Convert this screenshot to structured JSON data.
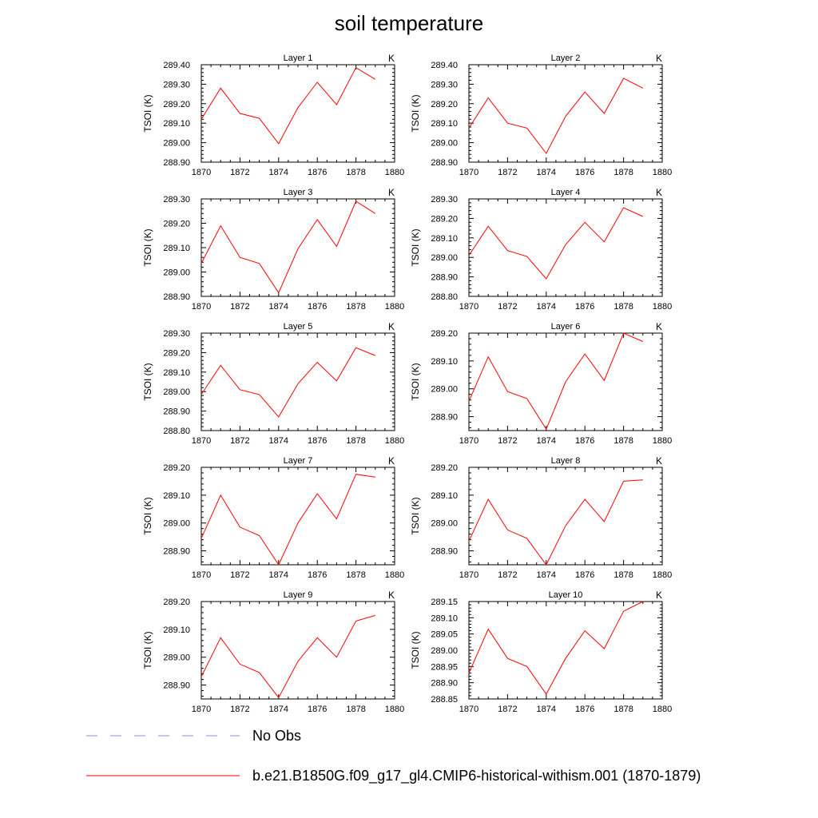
{
  "title": "soil temperature",
  "legend": [
    {
      "label": "No Obs",
      "color": "#8888ee",
      "style": "dashed"
    },
    {
      "label": "b.e21.B1850G.f09_g17_gl4.CMIP6-historical-withism.001 (1870-1879)",
      "color": "#ff0000",
      "style": "solid"
    }
  ],
  "chart_data": [
    {
      "type": "line",
      "title": "Layer 1",
      "units": "K",
      "ylabel": "TSOI  (K)",
      "xlim": [
        1870,
        1880
      ],
      "ylim": [
        288.9,
        289.4
      ],
      "xticks": [
        "1870",
        "1872",
        "1874",
        "1876",
        "1878",
        "1880"
      ],
      "yticks": [
        "288.90",
        "289.00",
        "289.10",
        "289.20",
        "289.30",
        "289.40"
      ],
      "x": [
        1870,
        1871,
        1872,
        1873,
        1874,
        1875,
        1876,
        1877,
        1878,
        1879
      ],
      "series": [
        {
          "color": "#ff0000",
          "values": [
            289.12,
            289.28,
            289.15,
            289.125,
            288.995,
            289.18,
            289.31,
            289.195,
            289.385,
            289.325
          ]
        }
      ]
    },
    {
      "type": "line",
      "title": "Layer 2",
      "units": "K",
      "ylabel": "TSOI  (K)",
      "xlim": [
        1870,
        1880
      ],
      "ylim": [
        288.9,
        289.4
      ],
      "xticks": [
        "1870",
        "1872",
        "1874",
        "1876",
        "1878",
        "1880"
      ],
      "yticks": [
        "288.90",
        "289.00",
        "289.10",
        "289.20",
        "289.30",
        "289.40"
      ],
      "x": [
        1870,
        1871,
        1872,
        1873,
        1874,
        1875,
        1876,
        1877,
        1878,
        1879
      ],
      "series": [
        {
          "color": "#ff0000",
          "values": [
            289.075,
            289.23,
            289.1,
            289.075,
            288.945,
            289.135,
            289.26,
            289.15,
            289.33,
            289.28
          ]
        }
      ]
    },
    {
      "type": "line",
      "title": "Layer 3",
      "units": "K",
      "ylabel": "TSOI  (K)",
      "xlim": [
        1870,
        1880
      ],
      "ylim": [
        288.9,
        289.3
      ],
      "xticks": [
        "1870",
        "1872",
        "1874",
        "1876",
        "1878",
        "1880"
      ],
      "yticks": [
        "288.90",
        "289.00",
        "289.10",
        "289.20",
        "289.30"
      ],
      "x": [
        1870,
        1871,
        1872,
        1873,
        1874,
        1875,
        1876,
        1877,
        1878,
        1879
      ],
      "series": [
        {
          "color": "#ff0000",
          "values": [
            289.035,
            289.19,
            289.06,
            289.035,
            288.915,
            289.095,
            289.215,
            289.105,
            289.29,
            289.24
          ]
        }
      ]
    },
    {
      "type": "line",
      "title": "Layer 4",
      "units": "K",
      "ylabel": "TSOI  (K)",
      "xlim": [
        1870,
        1880
      ],
      "ylim": [
        288.8,
        289.3
      ],
      "xticks": [
        "1870",
        "1872",
        "1874",
        "1876",
        "1878",
        "1880"
      ],
      "yticks": [
        "288.80",
        "288.90",
        "289.00",
        "289.10",
        "289.20",
        "289.30"
      ],
      "x": [
        1870,
        1871,
        1872,
        1873,
        1874,
        1875,
        1876,
        1877,
        1878,
        1879
      ],
      "series": [
        {
          "color": "#ff0000",
          "values": [
            289.01,
            289.16,
            289.035,
            289.005,
            288.89,
            289.065,
            289.18,
            289.08,
            289.255,
            289.21
          ]
        }
      ]
    },
    {
      "type": "line",
      "title": "Layer 5",
      "units": "K",
      "ylabel": "TSOI  (K)",
      "xlim": [
        1870,
        1880
      ],
      "ylim": [
        288.8,
        289.3
      ],
      "xticks": [
        "1870",
        "1872",
        "1874",
        "1876",
        "1878",
        "1880"
      ],
      "yticks": [
        "288.80",
        "288.90",
        "289.00",
        "289.10",
        "289.20",
        "289.30"
      ],
      "x": [
        1870,
        1871,
        1872,
        1873,
        1874,
        1875,
        1876,
        1877,
        1878,
        1879
      ],
      "series": [
        {
          "color": "#ff0000",
          "values": [
            288.985,
            289.135,
            289.01,
            288.985,
            288.87,
            289.04,
            289.15,
            289.055,
            289.225,
            289.185
          ]
        }
      ]
    },
    {
      "type": "line",
      "title": "Layer 6",
      "units": "K",
      "ylabel": "TSOI  (K)",
      "xlim": [
        1870,
        1880
      ],
      "ylim": [
        288.85,
        289.2
      ],
      "xticks": [
        "1870",
        "1872",
        "1874",
        "1876",
        "1878",
        "1880"
      ],
      "yticks": [
        "288.90",
        "289.00",
        "289.10",
        "289.20"
      ],
      "x": [
        1870,
        1871,
        1872,
        1873,
        1874,
        1875,
        1876,
        1877,
        1878,
        1879
      ],
      "series": [
        {
          "color": "#ff0000",
          "values": [
            288.955,
            289.115,
            288.99,
            288.965,
            288.855,
            289.025,
            289.125,
            289.03,
            289.2,
            289.17
          ]
        }
      ]
    },
    {
      "type": "line",
      "title": "Layer 7",
      "units": "K",
      "ylabel": "TSOI  (K)",
      "xlim": [
        1870,
        1880
      ],
      "ylim": [
        288.85,
        289.2
      ],
      "xticks": [
        "1870",
        "1872",
        "1874",
        "1876",
        "1878",
        "1880"
      ],
      "yticks": [
        "288.90",
        "289.00",
        "289.10",
        "289.20"
      ],
      "x": [
        1870,
        1871,
        1872,
        1873,
        1874,
        1875,
        1876,
        1877,
        1878,
        1879
      ],
      "series": [
        {
          "color": "#ff0000",
          "values": [
            288.945,
            289.1,
            288.985,
            288.955,
            288.85,
            289.0,
            289.105,
            289.015,
            289.175,
            289.165
          ]
        }
      ]
    },
    {
      "type": "line",
      "title": "Layer 8",
      "units": "K",
      "ylabel": "TSOI  (K)",
      "xlim": [
        1870,
        1880
      ],
      "ylim": [
        288.85,
        289.2
      ],
      "xticks": [
        "1870",
        "1872",
        "1874",
        "1876",
        "1878",
        "1880"
      ],
      "yticks": [
        "288.90",
        "289.00",
        "289.10",
        "289.20"
      ],
      "x": [
        1870,
        1871,
        1872,
        1873,
        1874,
        1875,
        1876,
        1877,
        1878,
        1879
      ],
      "series": [
        {
          "color": "#ff0000",
          "values": [
            288.935,
            289.085,
            288.975,
            288.945,
            288.85,
            288.99,
            289.085,
            289.005,
            289.15,
            289.155
          ]
        }
      ]
    },
    {
      "type": "line",
      "title": "Layer 9",
      "units": "K",
      "ylabel": "TSOI  (K)",
      "xlim": [
        1870,
        1880
      ],
      "ylim": [
        288.85,
        289.2
      ],
      "xticks": [
        "1870",
        "1872",
        "1874",
        "1876",
        "1878",
        "1880"
      ],
      "yticks": [
        "288.90",
        "289.00",
        "289.10",
        "289.20"
      ],
      "x": [
        1870,
        1871,
        1872,
        1873,
        1874,
        1875,
        1876,
        1877,
        1878,
        1879
      ],
      "series": [
        {
          "color": "#ff0000",
          "values": [
            288.93,
            289.07,
            288.975,
            288.945,
            288.855,
            288.985,
            289.07,
            289.0,
            289.13,
            289.15
          ]
        }
      ]
    },
    {
      "type": "line",
      "title": "Layer 10",
      "units": "K",
      "ylabel": "TSOI  (K)",
      "xlim": [
        1870,
        1880
      ],
      "ylim": [
        288.85,
        289.15
      ],
      "xticks": [
        "1870",
        "1872",
        "1874",
        "1876",
        "1878",
        "1880"
      ],
      "yticks": [
        "288.85",
        "288.90",
        "288.95",
        "289.00",
        "289.05",
        "289.10",
        "289.15"
      ],
      "x": [
        1870,
        1871,
        1872,
        1873,
        1874,
        1875,
        1876,
        1877,
        1878,
        1879
      ],
      "series": [
        {
          "color": "#ff0000",
          "values": [
            288.93,
            289.065,
            288.975,
            288.95,
            288.865,
            288.975,
            289.06,
            289.005,
            289.12,
            289.15
          ]
        }
      ]
    }
  ]
}
